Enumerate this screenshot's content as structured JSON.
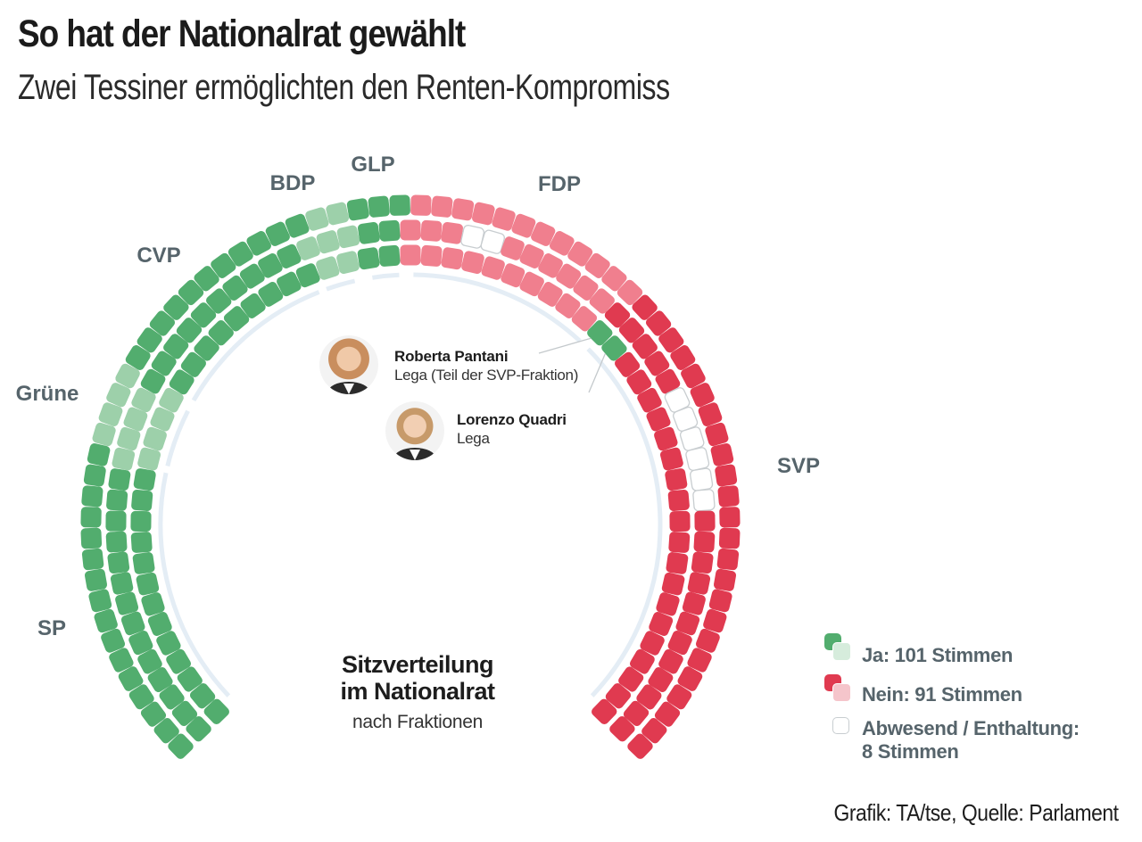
{
  "header": {
    "title": "So hat der Nationalrat gewählt",
    "subtitle": "Zwei Tessiner ermöglichten den Renten-Kompromiss"
  },
  "center_label": {
    "title_line1": "Sitzverteilung",
    "title_line2": "im Nationalrat",
    "subtitle": "nach Fraktionen"
  },
  "annotations": [
    {
      "name": "Roberta Pantani",
      "party": "Lega (Teil der SVP-Fraktion)"
    },
    {
      "name": "Lorenzo Quadri",
      "party": "Lega"
    }
  ],
  "legend": {
    "items": [
      {
        "label": "Ja: 101 Stimmen",
        "color_dark": "#52ad6e",
        "color_light": "#9dd0aa"
      },
      {
        "label": "Nein: 91 Stimmen",
        "color_dark": "#e03a50",
        "color_light": "#f5c5cb"
      },
      {
        "label_line1": "Abwesend / Enthaltung:",
        "label_line2": "8 Stimmen",
        "color": "#ffffff"
      }
    ]
  },
  "source": "Grafik: TA/tse, Quelle: Parlament",
  "colors": {
    "ja_dark": "#52ad6e",
    "ja_light": "#9dd0aa",
    "nein_dark": "#e03a50",
    "nein_light": "#f07f8e",
    "absent_stroke": "#c8cdd0",
    "arc_guide": "#e4edf5",
    "label": "#56646b"
  },
  "chart_data": {
    "type": "parliament-hemicycle",
    "title": "Sitzverteilung im Nationalrat",
    "subtitle": "nach Fraktionen",
    "total_seats": 200,
    "rows": 3,
    "totals": {
      "ja": 101,
      "nein": 91,
      "abwesend_enthaltung": 8
    },
    "parties": [
      {
        "name": "SP",
        "seats": 43,
        "ja": 43,
        "nein": 0,
        "absent": 0,
        "shade": "dark"
      },
      {
        "name": "Grüne",
        "seats": 12,
        "ja": 12,
        "nein": 0,
        "absent": 0,
        "shade": "light"
      },
      {
        "name": "CVP",
        "seats": 30,
        "ja": 30,
        "nein": 0,
        "absent": 0,
        "shade": "dark"
      },
      {
        "name": "BDP",
        "seats": 7,
        "ja": 7,
        "nein": 0,
        "absent": 0,
        "shade": "light"
      },
      {
        "name": "GLP",
        "seats": 7,
        "ja": 7,
        "nein": 0,
        "absent": 0,
        "shade": "dark"
      },
      {
        "name": "FDP",
        "seats": 33,
        "ja": 0,
        "nein": 31,
        "absent": 2,
        "shade": "light"
      },
      {
        "name": "SVP",
        "seats": 68,
        "ja": 2,
        "nein": 60,
        "absent": 6,
        "shade": "dark"
      }
    ]
  }
}
